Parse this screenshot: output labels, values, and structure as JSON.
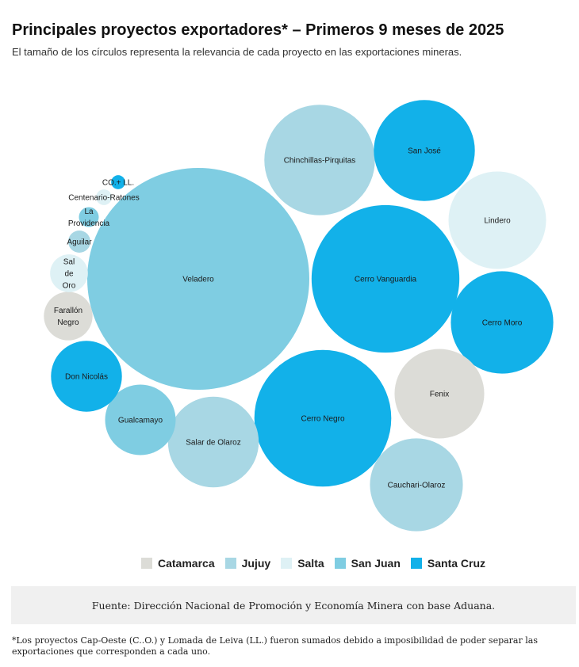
{
  "title": "Principales proyectos exportadores* – Primeros 9 meses de 2025",
  "subtitle": "El tamaño de los círculos representa la relevancia de cada proyecto en las exportaciones mineras.",
  "colors": {
    "Catamarca": "#dcdcd7",
    "Jujuy": "#a8d7e4",
    "Salta": "#def1f5",
    "San Juan": "#7fcde2",
    "Santa Cruz": "#12b1e9"
  },
  "chart_data": {
    "type": "bubble",
    "title": "Principales proyectos exportadores* – Primeros 9 meses de 2025",
    "legend": [
      "Catamarca",
      "Jujuy",
      "Salta",
      "San Juan",
      "Santa Cruz"
    ],
    "legend_position": "bottom",
    "grid": false,
    "series": [
      {
        "label_lines": [
          "Veladero"
        ],
        "province": "San Juan",
        "value": 100
      },
      {
        "label_lines": [
          "Cerro Vanguardia"
        ],
        "province": "Santa Cruz",
        "value": 44.3
      },
      {
        "label_lines": [
          "Cerro Negro"
        ],
        "province": "Santa Cruz",
        "value": 38.0
      },
      {
        "label_lines": [
          "Chinchillas-Pirquitas"
        ],
        "province": "Jujuy",
        "value": 24.8
      },
      {
        "label_lines": [
          "San José"
        ],
        "province": "Santa Cruz",
        "value": 20.7
      },
      {
        "label_lines": [
          "Lindero"
        ],
        "province": "Salta",
        "value": 19.3
      },
      {
        "label_lines": [
          "Cerro Moro"
        ],
        "province": "Santa Cruz",
        "value": 21.3
      },
      {
        "label_lines": [
          "Fenix"
        ],
        "province": "Catamarca",
        "value": 16.3
      },
      {
        "label_lines": [
          "Cauchari-Olaroz"
        ],
        "province": "Jujuy",
        "value": 17.5
      },
      {
        "label_lines": [
          "Salar de Olaroz"
        ],
        "province": "Jujuy",
        "value": 16.7
      },
      {
        "label_lines": [
          "Gualcamayo"
        ],
        "province": "San Juan",
        "value": 10.1
      },
      {
        "label_lines": [
          "Don Nicolás"
        ],
        "province": "Santa Cruz",
        "value": 10.2
      },
      {
        "label_lines": [
          "Farallón",
          "Negro"
        ],
        "province": "Catamarca",
        "value": 4.8
      },
      {
        "label_lines": [
          "Sal",
          "de",
          "Oro"
        ],
        "province": "Salta",
        "value": 2.9
      },
      {
        "label_lines": [
          "Aguilar"
        ],
        "province": "Jujuy",
        "value": 1.0
      },
      {
        "label_lines": [
          "La",
          "Providencia"
        ],
        "province": "San Juan",
        "value": 0.8
      },
      {
        "label_lines": [
          "Centenario-Ratones"
        ],
        "province": "Salta",
        "value": 0.5
      },
      {
        "label_lines": [
          "CO.+ LL."
        ],
        "province": "Santa Cruz",
        "value": 0.4
      }
    ]
  },
  "source": "Fuente: Dirección Nacional de Promoción y Economía Minera con base Aduana.",
  "footnote": "*Los proyectos Cap-Oeste (C..O.) y  Lomada de Leiva  (LL.) fueron sumados debido a  imposibilidad de poder separar las exportaciones que corresponden a cada uno."
}
